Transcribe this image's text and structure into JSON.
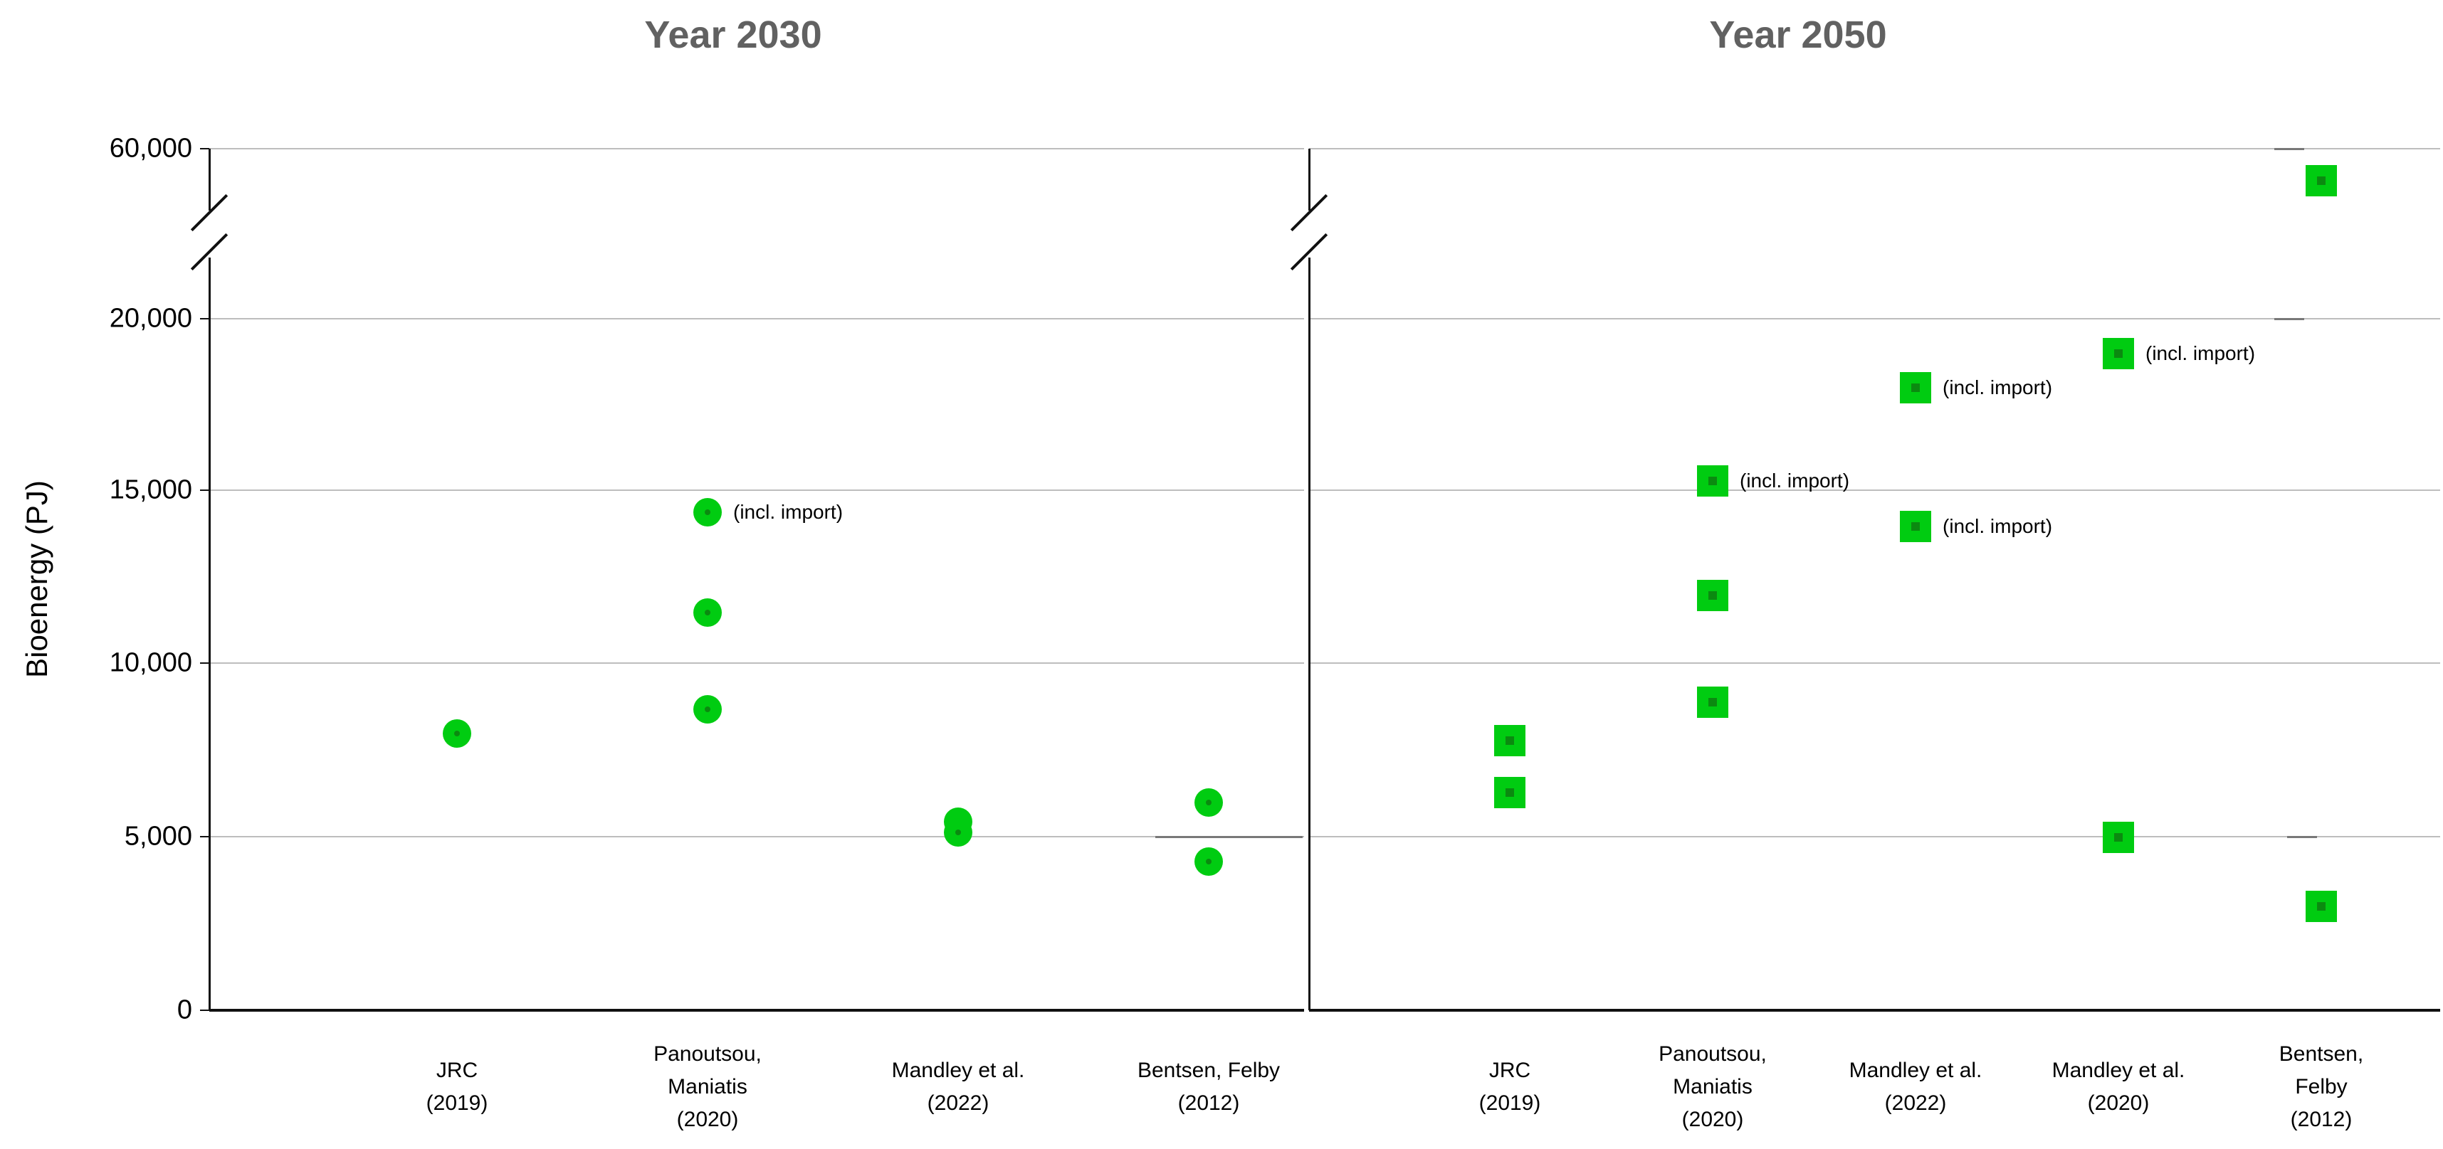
{
  "figure": {
    "left_title": "Year 2030",
    "right_title": "Year 2050",
    "y_axis_label": "Bioenergy (PJ)",
    "annotation_text": "(incl. import)",
    "colors": {
      "marker_green": "#00cc11",
      "marker_dot_green": "#0b8a10",
      "title_gray": "#616161",
      "gridline_gray": "#bdbdbd",
      "axis_black": "#111111"
    }
  },
  "chart_data": [
    {
      "type": "scatter",
      "panel": "left",
      "title": "Year 2030",
      "marker": "circle",
      "xlabel": "",
      "ylabel": "Bioenergy (PJ)",
      "y_ticks": [
        0,
        5000,
        10000,
        15000,
        20000,
        60000
      ],
      "y_tick_labels": [
        "0",
        "5,000",
        "10,000",
        "15,000",
        "20,000",
        "60,000"
      ],
      "y_axis_break_between": [
        20000,
        60000
      ],
      "grid": true,
      "categories": [
        {
          "lines": [
            "JRC",
            "(2019)"
          ]
        },
        {
          "lines": [
            "Panoutsou,",
            "Maniatis",
            "(2020)"
          ]
        },
        {
          "lines": [
            "Mandley et al.",
            "(2022)"
          ]
        },
        {
          "lines": [
            "Bentsen, Felby",
            "(2012)"
          ]
        }
      ],
      "points": [
        {
          "category_index": 0,
          "value": 8000
        },
        {
          "category_index": 1,
          "value": 14400,
          "note": "(incl. import)"
        },
        {
          "category_index": 1,
          "value": 11500
        },
        {
          "category_index": 1,
          "value": 8700
        },
        {
          "category_index": 2,
          "value": 5450
        },
        {
          "category_index": 2,
          "value": 5150
        },
        {
          "category_index": 3,
          "value": 6000
        },
        {
          "category_index": 3,
          "value": 4300
        }
      ]
    },
    {
      "type": "scatter",
      "panel": "right",
      "title": "Year 2050",
      "marker": "square",
      "xlabel": "",
      "ylabel": "Bioenergy (PJ)",
      "y_ticks": [
        0,
        5000,
        10000,
        15000,
        20000,
        60000
      ],
      "y_tick_labels": [
        "0",
        "5,000",
        "10,000",
        "15,000",
        "20,000",
        "60,000"
      ],
      "y_axis_break_between": [
        20000,
        60000
      ],
      "grid": true,
      "categories": [
        {
          "lines": [
            "JRC",
            "(2019)"
          ]
        },
        {
          "lines": [
            "Panoutsou,",
            "Maniatis",
            "(2020)"
          ]
        },
        {
          "lines": [
            "Mandley et al.",
            "(2022)"
          ]
        },
        {
          "lines": [
            "Mandley et al.",
            "(2020)"
          ]
        },
        {
          "lines": [
            "Bentsen,",
            "Felby",
            "(2012)"
          ]
        }
      ],
      "points": [
        {
          "category_index": 0,
          "value": 7800
        },
        {
          "category_index": 0,
          "value": 6300
        },
        {
          "category_index": 1,
          "value": 15300,
          "note": "(incl. import)"
        },
        {
          "category_index": 1,
          "value": 12000
        },
        {
          "category_index": 1,
          "value": 8900
        },
        {
          "category_index": 2,
          "value": 18000,
          "note": "(incl. import)"
        },
        {
          "category_index": 2,
          "value": 14000,
          "note": "(incl. import)"
        },
        {
          "category_index": 3,
          "value": 19000,
          "note": "(incl. import)"
        },
        {
          "category_index": 3,
          "value": 5000
        },
        {
          "category_index": 4,
          "value": 57000,
          "above_break": true
        },
        {
          "category_index": 4,
          "value": 3000
        }
      ]
    }
  ]
}
